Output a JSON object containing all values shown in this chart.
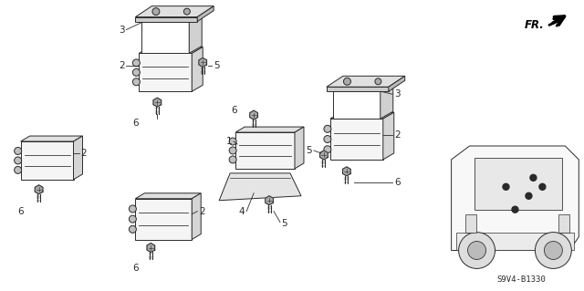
{
  "bg_color": "#ffffff",
  "line_color": "#2a2a2a",
  "diagram_ref": "S9V4-B1330",
  "figsize": [
    6.4,
    3.19
  ],
  "dpi": 100
}
